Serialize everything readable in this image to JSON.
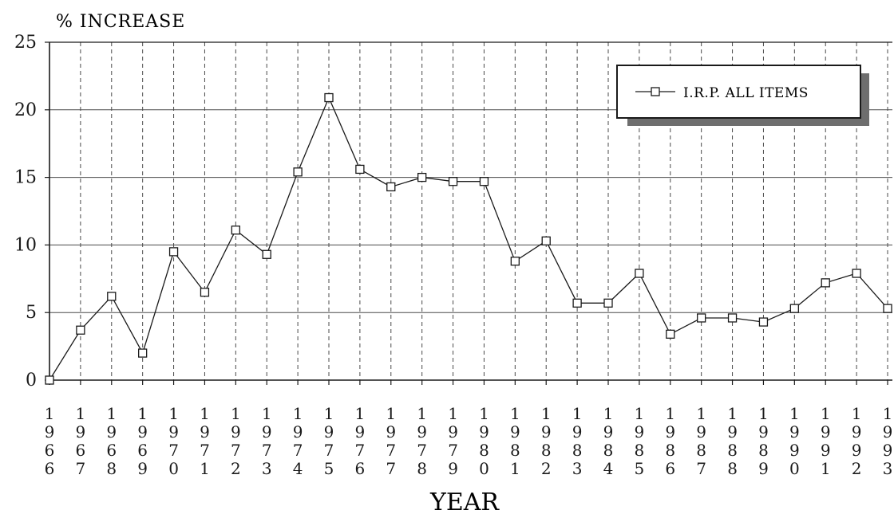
{
  "chart_data": {
    "type": "line",
    "ylabel": "% INCREASE",
    "xlabel": "YEAR",
    "ylim": [
      0,
      25
    ],
    "yticks": [
      0,
      5,
      10,
      15,
      20,
      25
    ],
    "grid": true,
    "legend_position": "top-right",
    "x": [
      "1966",
      "1967",
      "1968",
      "1969",
      "1970",
      "1971",
      "1972",
      "1973",
      "1974",
      "1975",
      "1976",
      "1977",
      "1978",
      "1979",
      "1980",
      "1981",
      "1982",
      "1983",
      "1984",
      "1985",
      "1986",
      "1987",
      "1988",
      "1989",
      "1990",
      "1991",
      "1992",
      "1993"
    ],
    "series": [
      {
        "name": "I.R.P. ALL ITEMS",
        "marker": "square",
        "values": [
          0,
          3.7,
          6.2,
          2.0,
          9.5,
          6.5,
          11.1,
          9.3,
          15.4,
          20.9,
          15.6,
          14.3,
          15.0,
          14.7,
          14.7,
          8.8,
          10.3,
          5.7,
          5.7,
          7.9,
          3.4,
          4.6,
          4.6,
          4.3,
          5.3,
          7.2,
          7.9,
          5.3
        ]
      }
    ]
  },
  "colors": {
    "ink": "#1a1a1a",
    "grid": "#4a4a4a",
    "shadow": "#6e6e6e",
    "background": "#ffffff"
  }
}
